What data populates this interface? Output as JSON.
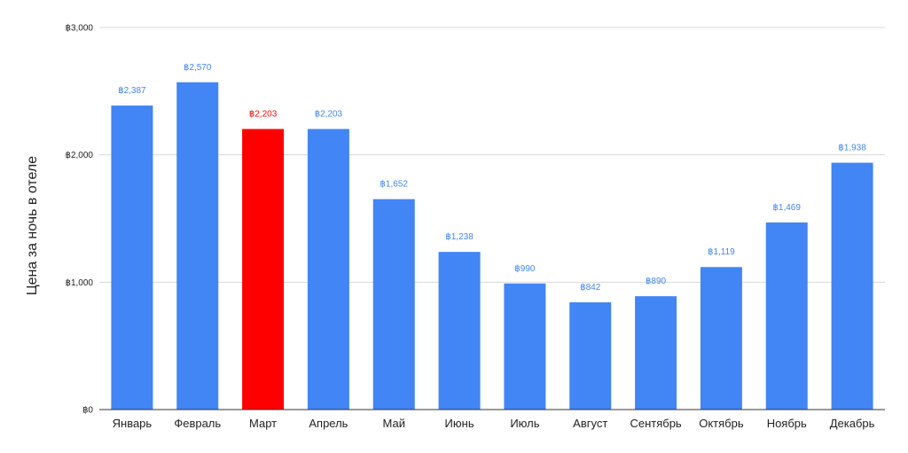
{
  "chart_data": {
    "type": "bar",
    "title": "",
    "xlabel": "",
    "ylabel": "Цена за ночь в отеле",
    "categories": [
      "Январь",
      "Февраль",
      "Март",
      "Апрель",
      "Май",
      "Июнь",
      "Июль",
      "Август",
      "Сентябрь",
      "Октябрь",
      "Ноябрь",
      "Декабрь"
    ],
    "values": [
      2387,
      2570,
      2203,
      2203,
      1652,
      1238,
      990,
      842,
      890,
      1119,
      1469,
      1938
    ],
    "value_labels": [
      "฿2,387",
      "฿2,570",
      "฿2,203",
      "฿2,203",
      "฿1,652",
      "฿1,238",
      "฿990",
      "฿842",
      "฿890",
      "฿1,119",
      "฿1,469",
      "฿1,938"
    ],
    "highlight_index": 2,
    "ylim": [
      0,
      3000
    ],
    "yticks": [
      0,
      1000,
      2000,
      3000
    ],
    "ytick_labels": [
      "฿0",
      "฿1,000",
      "฿2,000",
      "฿3,000"
    ],
    "grid": true,
    "legend": "none",
    "colors": {
      "bar": "#4285f4",
      "highlight": "#ff0000",
      "label": "#4285f4",
      "highlight_label": "#ff0000",
      "grid": "#d9d9d9",
      "axis": "#333333"
    }
  }
}
